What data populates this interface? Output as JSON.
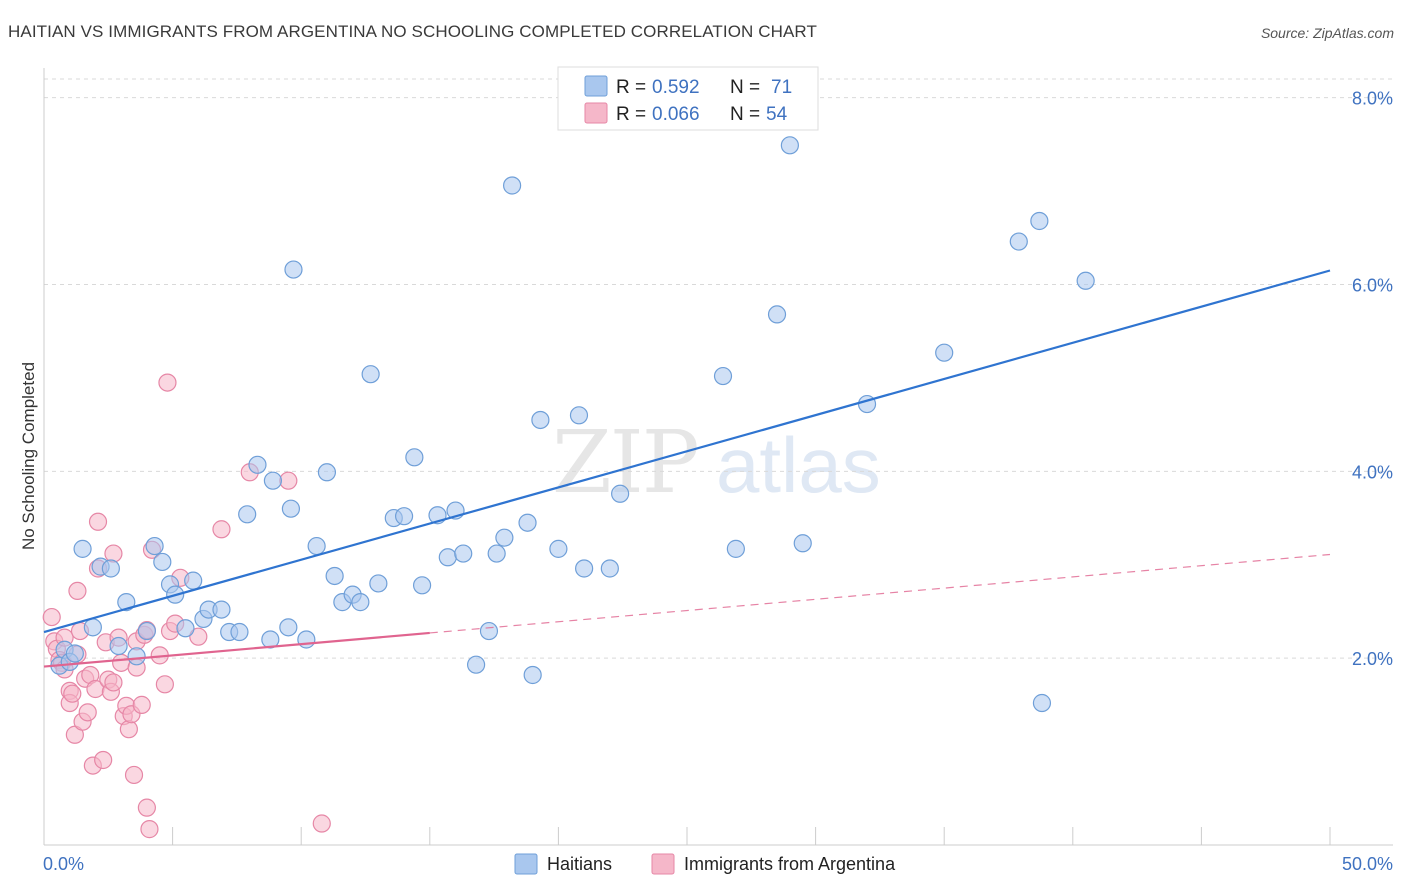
{
  "title": "HAITIAN VS IMMIGRANTS FROM ARGENTINA NO SCHOOLING COMPLETED CORRELATION CHART",
  "source": "Source: ZipAtlas.com",
  "colors": {
    "blue_fill": "#a9c7ee",
    "blue_stroke": "#6f9fd8",
    "blue_line": "#2f74d0",
    "pink_fill": "#f5b7c9",
    "pink_stroke": "#e687a6",
    "pink_line": "#e0648f",
    "axis_label": "#3f72c0",
    "grid": "#d9d9d9"
  },
  "stats_legend": {
    "r_label": "R =",
    "n_label": "N =",
    "series1": {
      "r": "0.592",
      "n": "71"
    },
    "series2": {
      "r": "0.066",
      "n": "54"
    }
  },
  "bottom_legend": {
    "series1": "Haitians",
    "series2": "Immigrants from Argentina"
  },
  "watermark": {
    "part1": "ZIP",
    "part2": "atlas"
  },
  "chart_data": {
    "type": "scatter",
    "title": "HAITIAN VS IMMIGRANTS FROM ARGENTINA NO SCHOOLING COMPLETED CORRELATION CHART",
    "xlabel": "",
    "ylabel": "No Schooling Completed",
    "xlim": [
      0,
      50
    ],
    "ylim": [
      0,
      8.2
    ],
    "x_tick_labels": {
      "left": "0.0%",
      "right": "50.0%"
    },
    "y_ticks": [
      2,
      4,
      6,
      8
    ],
    "y_tick_labels": [
      "2.0%",
      "4.0%",
      "6.0%",
      "8.0%"
    ],
    "series": [
      {
        "name": "Haitians",
        "trendline": {
          "x": [
            0,
            50
          ],
          "y": [
            2.28,
            6.15
          ],
          "style": "solid"
        },
        "points": [
          [
            0.6,
            1.92
          ],
          [
            0.8,
            2.09
          ],
          [
            1.0,
            1.96
          ],
          [
            1.2,
            2.05
          ],
          [
            1.5,
            3.17
          ],
          [
            1.9,
            2.33
          ],
          [
            2.2,
            2.98
          ],
          [
            2.6,
            2.96
          ],
          [
            2.9,
            2.13
          ],
          [
            3.2,
            2.6
          ],
          [
            3.6,
            2.02
          ],
          [
            4.0,
            2.29
          ],
          [
            4.3,
            3.2
          ],
          [
            4.6,
            3.03
          ],
          [
            4.9,
            2.79
          ],
          [
            5.1,
            2.68
          ],
          [
            5.5,
            2.32
          ],
          [
            5.8,
            2.83
          ],
          [
            6.2,
            2.42
          ],
          [
            6.4,
            2.52
          ],
          [
            6.9,
            2.52
          ],
          [
            7.2,
            2.28
          ],
          [
            7.6,
            2.28
          ],
          [
            7.9,
            3.54
          ],
          [
            8.3,
            4.07
          ],
          [
            8.8,
            2.2
          ],
          [
            8.9,
            3.9
          ],
          [
            9.5,
            2.33
          ],
          [
            9.6,
            3.6
          ],
          [
            9.7,
            6.16
          ],
          [
            10.2,
            2.2
          ],
          [
            10.6,
            3.2
          ],
          [
            11.0,
            3.99
          ],
          [
            11.3,
            2.88
          ],
          [
            11.6,
            2.6
          ],
          [
            12.0,
            2.68
          ],
          [
            12.3,
            2.6
          ],
          [
            12.7,
            5.04
          ],
          [
            13.0,
            2.8
          ],
          [
            13.6,
            3.5
          ],
          [
            14.0,
            3.52
          ],
          [
            14.4,
            4.15
          ],
          [
            14.7,
            2.78
          ],
          [
            15.3,
            3.53
          ],
          [
            15.7,
            3.08
          ],
          [
            16.0,
            3.58
          ],
          [
            16.3,
            3.12
          ],
          [
            16.8,
            1.93
          ],
          [
            17.3,
            2.29
          ],
          [
            17.6,
            3.12
          ],
          [
            17.9,
            3.29
          ],
          [
            18.2,
            7.06
          ],
          [
            18.8,
            3.45
          ],
          [
            19.0,
            1.82
          ],
          [
            19.3,
            4.55
          ],
          [
            20.0,
            3.17
          ],
          [
            20.8,
            4.6
          ],
          [
            21.0,
            2.96
          ],
          [
            22.0,
            2.96
          ],
          [
            22.4,
            3.76
          ],
          [
            26.4,
            5.02
          ],
          [
            26.9,
            3.17
          ],
          [
            28.5,
            5.68
          ],
          [
            29.0,
            7.49
          ],
          [
            29.5,
            3.23
          ],
          [
            32.0,
            4.72
          ],
          [
            35.0,
            5.27
          ],
          [
            37.9,
            6.46
          ],
          [
            38.7,
            6.68
          ],
          [
            38.8,
            1.52
          ],
          [
            40.5,
            6.04
          ]
        ]
      },
      {
        "name": "Immigrants from Argentina",
        "trendline": {
          "x": [
            0,
            50
          ],
          "y": [
            1.91,
            3.11
          ],
          "style": "solid to 15, dashed beyond",
          "solid_until": 15
        },
        "points": [
          [
            0.3,
            2.44
          ],
          [
            0.4,
            2.18
          ],
          [
            0.5,
            2.1
          ],
          [
            0.6,
            1.98
          ],
          [
            0.7,
            1.95
          ],
          [
            0.8,
            2.22
          ],
          [
            0.8,
            1.88
          ],
          [
            1.0,
            1.65
          ],
          [
            1.0,
            1.52
          ],
          [
            1.1,
            1.62
          ],
          [
            1.2,
            1.18
          ],
          [
            1.3,
            2.04
          ],
          [
            1.3,
            2.72
          ],
          [
            1.4,
            2.29
          ],
          [
            1.5,
            1.32
          ],
          [
            1.6,
            1.78
          ],
          [
            1.7,
            1.42
          ],
          [
            1.8,
            1.82
          ],
          [
            1.9,
            0.85
          ],
          [
            2.0,
            1.67
          ],
          [
            2.1,
            2.96
          ],
          [
            2.1,
            3.46
          ],
          [
            2.3,
            0.91
          ],
          [
            2.4,
            2.17
          ],
          [
            2.5,
            1.77
          ],
          [
            2.6,
            1.64
          ],
          [
            2.7,
            1.74
          ],
          [
            2.7,
            3.12
          ],
          [
            2.9,
            2.22
          ],
          [
            3.0,
            1.95
          ],
          [
            3.1,
            1.38
          ],
          [
            3.2,
            1.49
          ],
          [
            3.3,
            1.24
          ],
          [
            3.4,
            1.4
          ],
          [
            3.5,
            0.75
          ],
          [
            3.6,
            2.18
          ],
          [
            3.6,
            1.9
          ],
          [
            3.8,
            1.5
          ],
          [
            3.9,
            2.25
          ],
          [
            4.0,
            2.3
          ],
          [
            4.0,
            0.4
          ],
          [
            4.1,
            0.17
          ],
          [
            4.2,
            3.16
          ],
          [
            4.5,
            2.03
          ],
          [
            4.7,
            1.72
          ],
          [
            4.8,
            4.95
          ],
          [
            4.9,
            2.29
          ],
          [
            5.1,
            2.37
          ],
          [
            5.3,
            2.86
          ],
          [
            6.0,
            2.23
          ],
          [
            6.9,
            3.38
          ],
          [
            8.0,
            3.99
          ],
          [
            9.5,
            3.9
          ],
          [
            10.8,
            0.23
          ]
        ]
      }
    ]
  }
}
